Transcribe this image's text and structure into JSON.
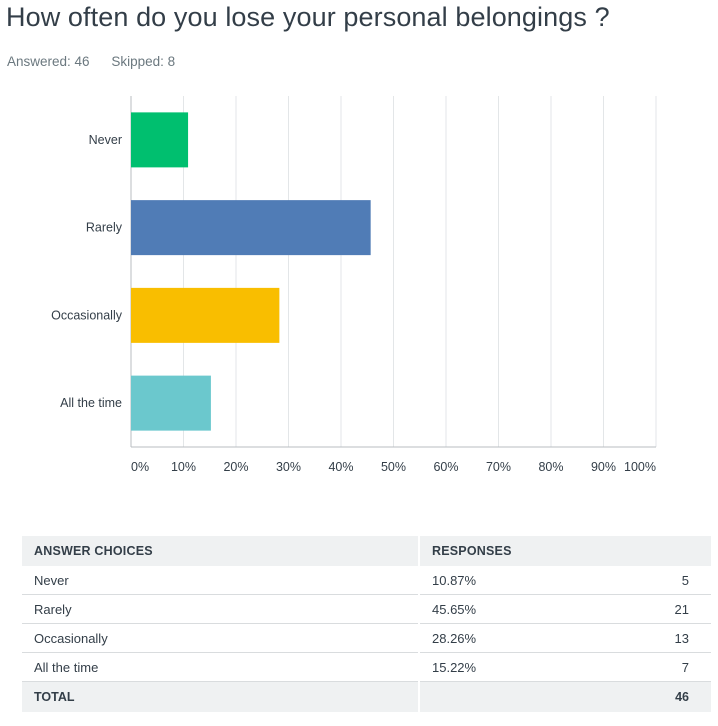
{
  "question": {
    "title": "How often do you lose your personal belongings ?",
    "answered_label": "Answered: 46",
    "skipped_label": "Skipped: 8"
  },
  "chart_data": {
    "type": "bar",
    "orientation": "horizontal",
    "categories": [
      "Never",
      "Rarely",
      "Occasionally",
      "All the time"
    ],
    "values": [
      10.87,
      45.65,
      28.26,
      15.22
    ],
    "colors": [
      "#00bf6f",
      "#507cb6",
      "#f9be00",
      "#6bc8cd"
    ],
    "xlim": [
      0,
      100
    ],
    "xticks": [
      "0%",
      "10%",
      "20%",
      "30%",
      "40%",
      "50%",
      "60%",
      "70%",
      "80%",
      "90%",
      "100%"
    ],
    "grid": true,
    "title": "",
    "xlabel": "",
    "ylabel": ""
  },
  "table": {
    "headers": {
      "choice": "ANSWER CHOICES",
      "responses": "RESPONSES"
    },
    "rows": [
      {
        "choice": "Never",
        "percent": "10.87%",
        "count": "5"
      },
      {
        "choice": "Rarely",
        "percent": "45.65%",
        "count": "21"
      },
      {
        "choice": "Occasionally",
        "percent": "28.26%",
        "count": "13"
      },
      {
        "choice": "All the time",
        "percent": "15.22%",
        "count": "7"
      }
    ],
    "total": {
      "label": "TOTAL",
      "count": "46"
    }
  }
}
